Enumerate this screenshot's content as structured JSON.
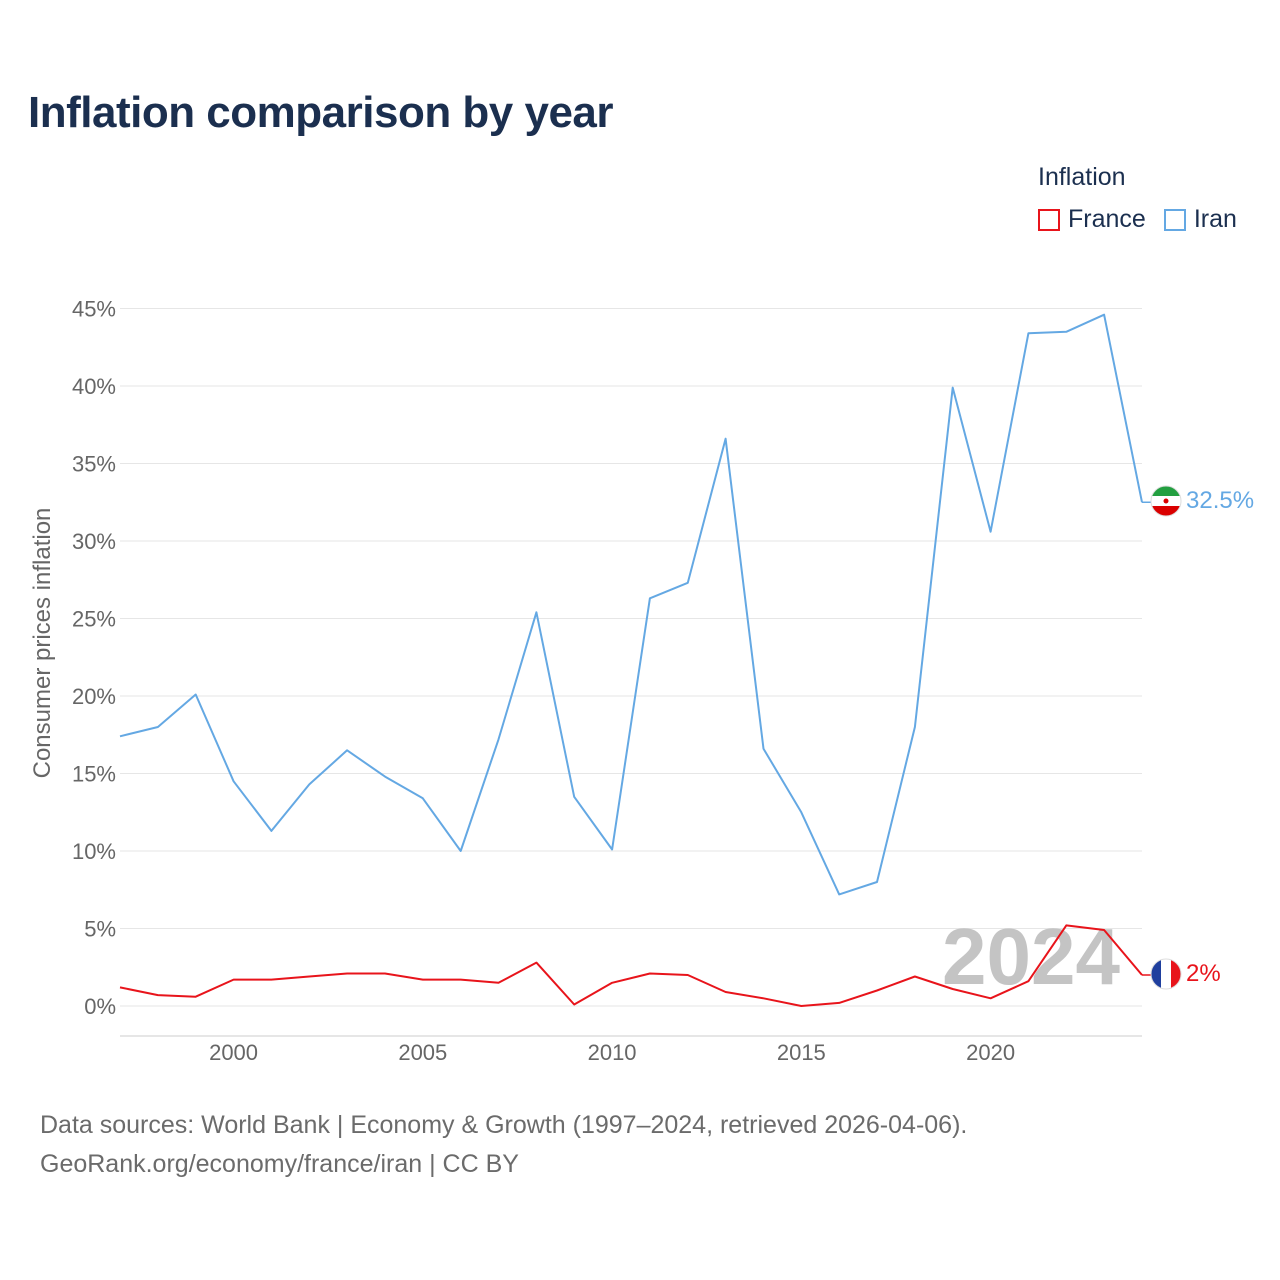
{
  "title": "Inflation comparison by year",
  "legend": {
    "title": "Inflation",
    "items": [
      {
        "label": "France",
        "color": "#e8141b"
      },
      {
        "label": "Iran",
        "color": "#64a8e3"
      }
    ]
  },
  "sources": {
    "line1": "Data sources: World Bank | Economy & Growth (1997–2024, retrieved 2026-04-06).",
    "line2": "GeoRank.org/economy/france/iran | CC BY"
  },
  "chart_data": {
    "type": "line",
    "title": "Inflation comparison by year",
    "xlabel": "",
    "ylabel": "Consumer prices inflation",
    "xlim": [
      1997,
      2024
    ],
    "ylim": [
      -2,
      45
    ],
    "y_ticks": [
      0,
      5,
      10,
      15,
      20,
      25,
      30,
      35,
      40,
      45
    ],
    "y_tick_labels": [
      "0%",
      "5%",
      "10%",
      "15%",
      "20%",
      "25%",
      "30%",
      "35%",
      "40%",
      "45%"
    ],
    "x_ticks": [
      2000,
      2005,
      2010,
      2015,
      2020
    ],
    "x_tick_labels": [
      "2000",
      "2005",
      "2010",
      "2015",
      "2020"
    ],
    "watermark_year": "2024",
    "x": [
      1997,
      1998,
      1999,
      2000,
      2001,
      2002,
      2003,
      2004,
      2005,
      2006,
      2007,
      2008,
      2009,
      2010,
      2011,
      2012,
      2013,
      2014,
      2015,
      2016,
      2017,
      2018,
      2019,
      2020,
      2021,
      2022,
      2023,
      2024
    ],
    "series": [
      {
        "name": "Iran",
        "color": "#64a8e3",
        "end_label": "32.5%",
        "flag": "iran-flag-icon",
        "values": [
          17.4,
          18.0,
          20.1,
          14.5,
          11.3,
          14.3,
          16.5,
          14.8,
          13.4,
          10.0,
          17.2,
          25.4,
          13.5,
          10.1,
          26.3,
          27.3,
          36.6,
          16.6,
          12.5,
          7.2,
          8.0,
          18.0,
          39.9,
          30.6,
          43.4,
          43.5,
          44.6,
          32.5
        ]
      },
      {
        "name": "France",
        "color": "#e8141b",
        "end_label": "2%",
        "flag": "france-flag-icon",
        "values": [
          1.2,
          0.7,
          0.6,
          1.7,
          1.7,
          1.9,
          2.1,
          2.1,
          1.7,
          1.7,
          1.5,
          2.8,
          0.1,
          1.5,
          2.1,
          2.0,
          0.9,
          0.5,
          0.0,
          0.2,
          1.0,
          1.9,
          1.1,
          0.5,
          1.6,
          5.2,
          4.9,
          2.0
        ]
      }
    ]
  }
}
